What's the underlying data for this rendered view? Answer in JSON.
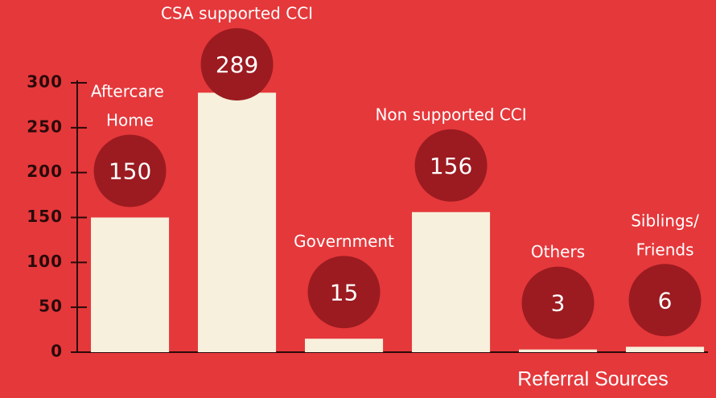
{
  "chart_data": {
    "type": "bar",
    "x_label": "Referral Sources",
    "categories": [
      "Aftercare Home",
      "CSA supported CCI",
      "Government",
      "Non supported CCI",
      "Others",
      "Siblings/Friends"
    ],
    "values": [
      150,
      289,
      15,
      156,
      3,
      6
    ],
    "color": "#f7f0dc",
    "label_color": "#9b1b20",
    "ylim": [
      0,
      300
    ],
    "yticks": [
      0,
      50,
      100,
      150,
      200,
      250,
      300
    ]
  }
}
